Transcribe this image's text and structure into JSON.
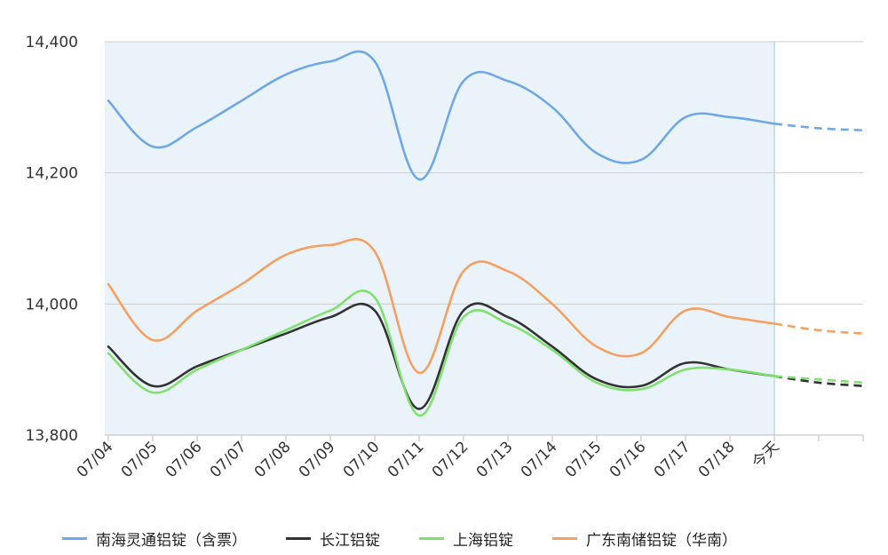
{
  "chart_data": {
    "type": "line",
    "categories": [
      "07/04",
      "07/05",
      "07/06",
      "07/07",
      "07/08",
      "07/09",
      "07/10",
      "07/11",
      "07/12",
      "07/13",
      "07/14",
      "07/15",
      "07/16",
      "07/17",
      "07/18",
      "今天",
      "",
      ""
    ],
    "forecast_start_index": 15,
    "ylim": [
      13800,
      14400
    ],
    "yticks": [
      13800,
      14000,
      14200,
      14400
    ],
    "ytick_labels": [
      "13,800",
      "14,000",
      "14,200",
      "14,400"
    ],
    "grid": true,
    "legend_position": "bottom",
    "series": [
      {
        "name": "南海灵通铝锭（含票）",
        "color": "#6fa8e6",
        "values": [
          14310,
          14240,
          14270,
          14310,
          14350,
          14370,
          14370,
          14190,
          14340,
          14340,
          14300,
          14230,
          14220,
          14285,
          14285,
          14275,
          14268,
          14265
        ]
      },
      {
        "name": "长江铝锭",
        "color": "#333333",
        "values": [
          13935,
          13875,
          13905,
          13930,
          13955,
          13980,
          13990,
          13840,
          13990,
          13980,
          13935,
          13885,
          13875,
          13910,
          13900,
          13890,
          13880,
          13875
        ]
      },
      {
        "name": "上海铝锭",
        "color": "#80e070",
        "values": [
          13925,
          13865,
          13900,
          13930,
          13960,
          13990,
          14010,
          13830,
          13980,
          13970,
          13930,
          13880,
          13870,
          13900,
          13900,
          13890,
          13885,
          13880
        ]
      },
      {
        "name": "广东南储铝锭（华南）",
        "color": "#f5a060",
        "values": [
          14030,
          13945,
          13990,
          14030,
          14075,
          14090,
          14080,
          13895,
          14050,
          14050,
          14000,
          13935,
          13925,
          13990,
          13980,
          13970,
          13960,
          13955
        ]
      }
    ]
  }
}
